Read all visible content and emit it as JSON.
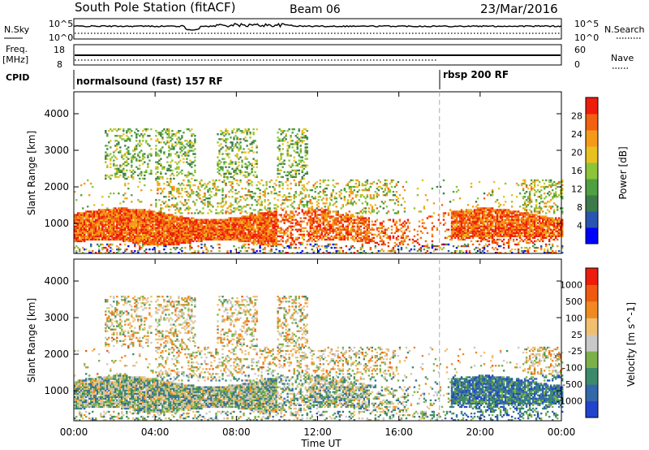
{
  "header": {
    "station": "South Pole Station (fitACF)",
    "beam": "Beam 06",
    "date": "23/Mar/2016"
  },
  "strip": {
    "nsky_label": "N.Sky",
    "nsearch_label": "N.Search",
    "freq_label_1": "Freq.",
    "freq_label_2": "[MHz]",
    "nave_label": "Nave",
    "cpid_label": "CPID",
    "noise_tick_top": "10^5",
    "noise_tick_bottom": "10^0",
    "freq_tick_top": "18",
    "freq_tick_bottom": "8",
    "nave_tick_top": "60",
    "nave_tick_bottom": "0",
    "cpid_1": "normalsound (fast) 157 RF",
    "cpid_2": "rbsp 200 RF"
  },
  "chart_data": [
    {
      "type": "heatmap",
      "panel": "power",
      "ylabel": "Slant Range [km]",
      "yticks": [
        1000,
        2000,
        3000,
        4000
      ],
      "ylim": [
        180,
        4600
      ],
      "xlim_hours": [
        0,
        24
      ],
      "colorbar_label": "Power [dB]",
      "colorbar_ticks": [
        "28",
        "24",
        "20",
        "16",
        "12",
        "8",
        "4"
      ],
      "colorbar_colors": [
        "#0000ff",
        "#2855b0",
        "#3d7a4a",
        "#4fa040",
        "#8cc43a",
        "#e8c020",
        "#f59a18",
        "#f26010",
        "#ee1c0c"
      ],
      "colorbar_range": [
        0,
        32
      ]
    },
    {
      "type": "heatmap",
      "panel": "velocity",
      "ylabel": "Slant Range [km]",
      "yticks": [
        1000,
        2000,
        3000,
        4000
      ],
      "ylim": [
        180,
        4600
      ],
      "xlim_hours": [
        0,
        24
      ],
      "colorbar_label": "Velocity [m s^-1]",
      "colorbar_ticks": [
        "1000",
        "500",
        "100",
        "25",
        "-25",
        "-100",
        "-500",
        "-1000"
      ],
      "colorbar_colors": [
        "#2244cc",
        "#3468a8",
        "#3c8a6c",
        "#7cb04a",
        "#c8c8c8",
        "#f0c070",
        "#f08a20",
        "#f05a10",
        "#ee1c0c"
      ],
      "colorbar_range": [
        -1200,
        1200
      ]
    }
  ],
  "xaxis": {
    "label": "Time UT",
    "ticks": [
      "00:00",
      "04:00",
      "08:00",
      "12:00",
      "16:00",
      "20:00",
      "00:00"
    ]
  },
  "markers": {
    "mode_change_hour": 18.0
  }
}
